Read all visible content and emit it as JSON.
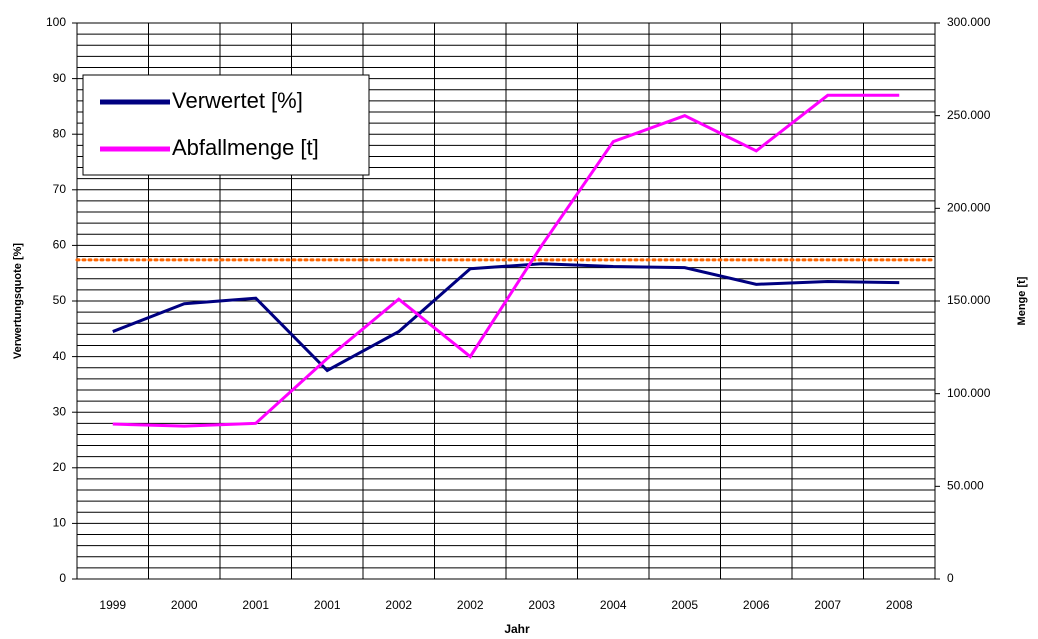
{
  "chart_data": {
    "type": "line",
    "x_label": "Jahr",
    "y_label": "Verwertungsquote [%]",
    "y2_label": "Menge [t]",
    "categories": [
      "1999",
      "2000",
      "2001",
      "2001",
      "2002",
      "2002",
      "2003",
      "2004",
      "2005",
      "2006",
      "2007",
      "2008"
    ],
    "series": [
      {
        "name": "Verwertet [%]",
        "color": "#000080",
        "values": [
          44.5,
          49.5,
          50.5,
          37.5,
          44.5,
          55.8,
          56.7,
          56.2,
          56,
          53,
          53.5,
          53.3
        ]
      },
      {
        "name": "Abfallmenge [t]",
        "color": "#ff00ff",
        "axis": "y2",
        "values": [
          83600,
          82500,
          84000,
          119000,
          151000,
          120000,
          180000,
          236000,
          250000,
          231000,
          261000,
          261000
        ]
      }
    ],
    "reference_line": {
      "value": 57.4,
      "color": "#ff6600"
    },
    "ylim": [
      0,
      100
    ],
    "yticks": [
      0,
      10,
      20,
      30,
      40,
      50,
      60,
      70,
      80,
      90,
      100
    ],
    "yminorticks": [
      0,
      2,
      4,
      6,
      8,
      10,
      12,
      14,
      16,
      18,
      20,
      22,
      24,
      26,
      28,
      30,
      32,
      34,
      36,
      38,
      40,
      42,
      44,
      46,
      48,
      50,
      52,
      54,
      56,
      58,
      60,
      62,
      64,
      66,
      68,
      70,
      72,
      74,
      76,
      78,
      80,
      82,
      84,
      86,
      88,
      90,
      92,
      94,
      96,
      98,
      100
    ],
    "y2lim": [
      0,
      300000
    ],
    "y2ticks": [
      0,
      {
        "value": 50000,
        "label": "50.000"
      },
      {
        "value": 100000,
        "label": "100.000"
      },
      {
        "value": 150000,
        "label": "150.000"
      },
      {
        "value": 200000,
        "label": "200.000"
      },
      {
        "value": 250000,
        "label": "250.000"
      },
      {
        "value": 300000,
        "label": "300.000"
      }
    ],
    "grid": true,
    "legend": "upper left"
  }
}
